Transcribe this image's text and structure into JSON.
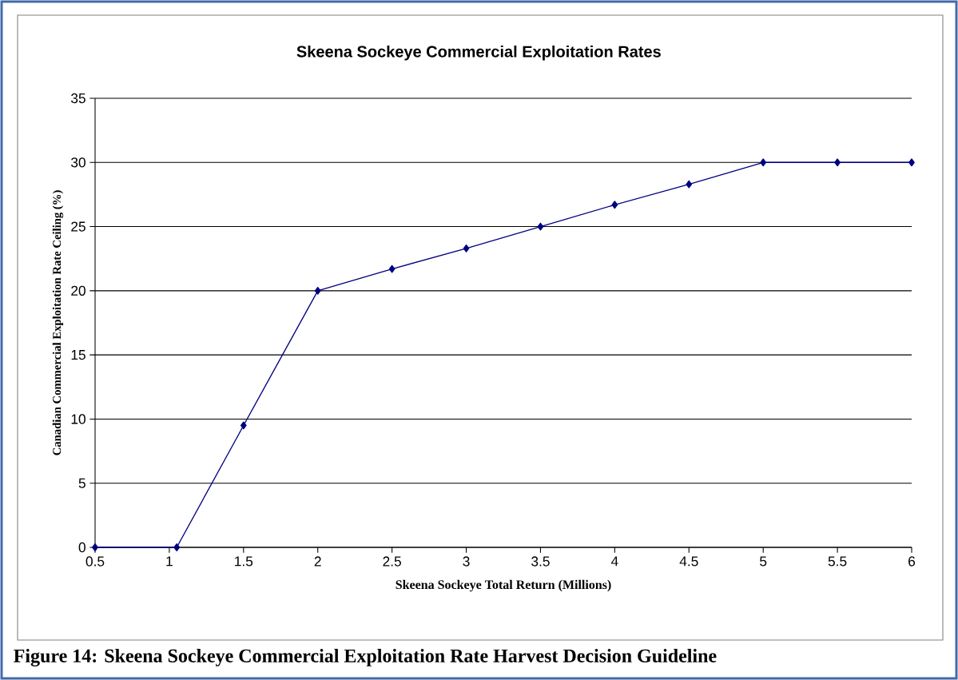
{
  "chart_data": {
    "type": "line",
    "title": "Skeena Sockeye Commercial Exploitation Rates",
    "xlabel": "Skeena Sockeye Total Return (Millions)",
    "ylabel": "Canadian Commercial Exploitation Rate Ceiling (%)",
    "x": [
      0.5,
      1.05,
      1.5,
      2,
      2.5,
      3,
      3.5,
      4,
      4.5,
      5,
      5.5,
      6
    ],
    "series": [
      {
        "color": "#000080",
        "values": [
          0,
          0,
          9.5,
          20,
          21.7,
          23.3,
          25,
          26.7,
          28.3,
          30,
          30,
          30
        ]
      }
    ],
    "xlim": [
      0.5,
      6
    ],
    "xticks": [
      0.5,
      1,
      1.5,
      2,
      2.5,
      3,
      3.5,
      4,
      4.5,
      5,
      5.5,
      6
    ],
    "ylim": [
      0,
      35
    ],
    "yticks": [
      0,
      5,
      10,
      15,
      20,
      25,
      30,
      35
    ],
    "grid": "y",
    "marker": "diamond",
    "line_style": "solid",
    "annotations": [
      "Figure 14: Skeena Sockeye Commercial Exploitation Rate Harvest Decision Guideline"
    ]
  }
}
